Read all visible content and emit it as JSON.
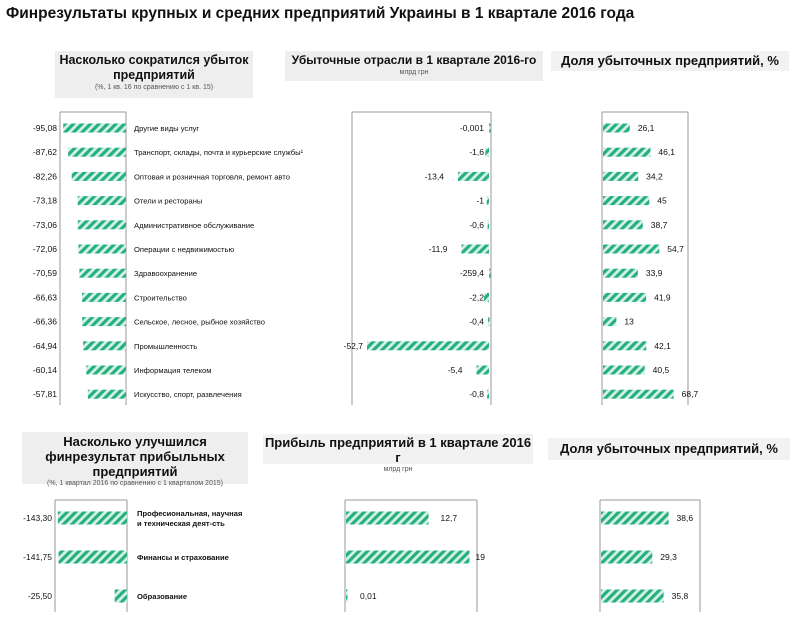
{
  "title": "Финрезультаты крупных и средних предприятий Украины в 1 квартале 2016 года",
  "colors": {
    "bar": "#26b07f",
    "bar_light": "#d6f1e6",
    "axis": "#9a9a9a",
    "panel_bg": "#eeeeee"
  },
  "headers": {
    "loss_reduction": {
      "title": "Насколько сократился убыток предприятий",
      "subtitle": "(%, 1 кв. 16 по сравнению с 1 кв. 15)"
    },
    "loss_sectors": {
      "title": "Убыточные отрасли в 1 квартале 2016-го",
      "unit": "млрд грн"
    },
    "loss_share_top": {
      "title": "Доля убыточных предприятий, %"
    },
    "profit_improvement": {
      "title": "Насколько улучшился финрезультат прибыльных предприятий",
      "subtitle": "(%, 1 квартал 2016 по сравнению с 1 кварталом 2015)"
    },
    "profit": {
      "title": "Прибыль предприятий в 1 квартале 2016 г",
      "unit": "млрд грн"
    },
    "loss_share_bottom": {
      "title": "Доля убыточных предприятий, %"
    }
  },
  "chart_data": [
    {
      "type": "bar",
      "title": "Насколько сократился убыток предприятий",
      "categories": [
        "Другие виды услуг",
        "Транспорт, склады, почта и курьерские службы",
        "Оптовая и розничная торговля, ремонт авто",
        "Отели и рестораны",
        "Административное обслуживание",
        "Операции с недвижимостью",
        "Здравоохранение",
        "Строительство",
        "Сельское, лесное, рыбное хозяйство",
        "Промышленность",
        "Информация телеком",
        "Искусство, спорт, развлечения"
      ],
      "category_marks": [
        "",
        "¹",
        "",
        "",
        "",
        "",
        "",
        "",
        "",
        "",
        "",
        ""
      ],
      "values": [
        "-95,08",
        "-87,62",
        "-82,26",
        "-73,18",
        "-73,06",
        "-72,06",
        "-70,59",
        "-66,63",
        "-66,36",
        "-64,94",
        "-60,14",
        "-57,81"
      ]
    },
    {
      "type": "bar",
      "title": "Убыточные отрасли в 1 квартале 2016-го",
      "unit": "млрд грн",
      "values": [
        "-0,001",
        "-1,6",
        "-13,4",
        "-1",
        "-0,6",
        "-11,9",
        "-259,4",
        "-2,2",
        "-0,4",
        "-52,7",
        "-5,4",
        "-0,8"
      ]
    },
    {
      "type": "bar",
      "title": "Доля убыточных предприятий, %",
      "values": [
        "26,1",
        "46,1",
        "34,2",
        "45",
        "38,7",
        "54,7",
        "33,9",
        "41,9",
        "13",
        "42,1",
        "40,5",
        "68,7"
      ]
    },
    {
      "type": "bar",
      "title": "Насколько улучшился финрезультат прибыльных предприятий",
      "categories": [
        "Професиональная, научная и техническая деят-сть",
        "Финансы и страхование",
        "Образование"
      ],
      "values": [
        "-143,30",
        "-141,75",
        "-25,50"
      ]
    },
    {
      "type": "bar",
      "title": "Прибыль предприятий в 1 квартале 2016 г",
      "unit": "млрд грн",
      "values": [
        "12,7",
        "19",
        "0,01"
      ]
    },
    {
      "type": "bar",
      "title": "Доля убыточных предприятий, %",
      "values": [
        "38,6",
        "29,3",
        "35,8"
      ]
    }
  ]
}
